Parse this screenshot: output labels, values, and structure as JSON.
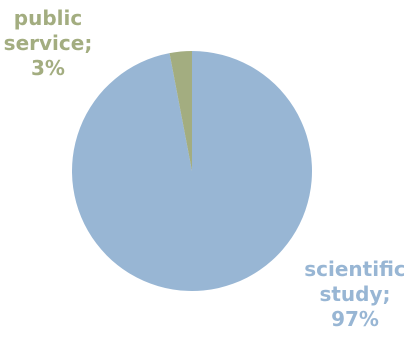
{
  "chart_data": {
    "type": "pie",
    "title": "",
    "slices": [
      {
        "name": "scientific study",
        "value": 97,
        "label_lines": [
          "scientific",
          "study;",
          "97%"
        ],
        "color": "#98b6d4",
        "label_color": "#98b6d4"
      },
      {
        "name": "public service",
        "value": 3,
        "label_lines": [
          "public",
          "service;",
          "3%"
        ],
        "color": "#a3ad80",
        "label_color": "#a3ad80"
      }
    ],
    "legend": "none"
  }
}
